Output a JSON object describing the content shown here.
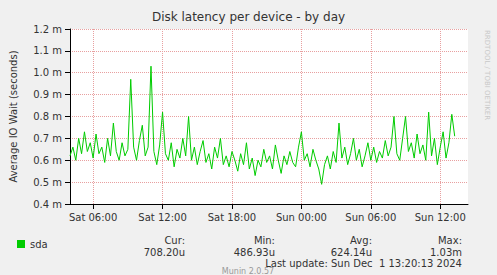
{
  "chart_data": {
    "type": "line",
    "title": "Disk latency per device - by day",
    "y_label": "Average IO Wait (seconds)",
    "side_text": "RRDTOOL / TOBI OETIKER",
    "x": [
      4,
      4.25,
      4.5,
      4.75,
      5,
      5.25,
      5.5,
      5.75,
      6,
      6.25,
      6.5,
      6.75,
      7,
      7.25,
      7.5,
      7.75,
      8,
      8.25,
      8.5,
      8.75,
      9,
      9.25,
      9.5,
      9.75,
      10,
      10.25,
      10.5,
      10.75,
      11,
      11.25,
      11.5,
      11.75,
      12,
      12.25,
      12.5,
      12.75,
      13,
      13.25,
      13.5,
      13.75,
      14,
      14.25,
      14.5,
      14.75,
      15,
      15.25,
      15.5,
      15.75,
      16,
      16.25,
      16.5,
      16.75,
      17,
      17.25,
      17.5,
      17.75,
      18,
      18.25,
      18.5,
      18.75,
      19,
      19.25,
      19.5,
      19.75,
      20,
      20.25,
      20.5,
      20.75,
      21,
      21.25,
      21.5,
      21.75,
      22,
      22.25,
      22.5,
      22.75,
      23,
      23.25,
      23.5,
      23.75,
      24,
      24.25,
      24.5,
      24.75,
      25,
      25.25,
      25.5,
      25.75,
      26,
      26.25,
      26.5,
      26.75,
      27,
      27.25,
      27.5,
      27.75,
      28,
      28.25,
      28.5,
      28.75,
      29,
      29.25,
      29.5,
      29.75,
      30,
      30.25,
      30.5,
      30.75,
      31,
      31.25,
      31.5,
      31.75,
      32,
      32.25,
      32.5,
      32.75,
      33,
      33.25,
      33.5,
      33.75,
      34,
      34.25,
      34.5,
      34.75,
      35,
      35.25,
      35.5,
      35.75,
      36,
      36.25,
      36.5,
      36.75,
      37,
      37.25
    ],
    "series": [
      {
        "name": "sda",
        "color": "#00cc00",
        "values": [
          0.00062,
          0.00066,
          0.0006,
          0.0007,
          0.00063,
          0.00073,
          0.00064,
          0.00068,
          0.00061,
          0.00072,
          0.00063,
          0.00066,
          0.00059,
          0.0007,
          0.00062,
          0.00077,
          0.00064,
          0.0006,
          0.00068,
          0.00062,
          0.00065,
          0.00097,
          0.00066,
          0.0006,
          0.00069,
          0.00076,
          0.00062,
          0.00066,
          0.00103,
          0.00064,
          0.00058,
          0.00067,
          0.00082,
          0.00063,
          0.0006,
          0.00068,
          0.00057,
          0.00065,
          0.00061,
          0.0007,
          0.00062,
          0.0008,
          0.0006,
          0.00066,
          0.00058,
          0.00064,
          0.00069,
          0.00059,
          0.00063,
          0.00056,
          0.00066,
          0.00061,
          0.0007,
          0.00058,
          0.00062,
          0.00057,
          0.00064,
          0.0006,
          0.00055,
          0.00063,
          0.00058,
          0.00068,
          0.00056,
          0.00061,
          0.00053,
          0.0006,
          0.00057,
          0.00065,
          0.00059,
          0.00062,
          0.00056,
          0.00067,
          0.0006,
          0.00054,
          0.00062,
          0.00058,
          0.00064,
          0.00059,
          0.00057,
          0.00066,
          0.00073,
          0.0006,
          0.00063,
          0.00057,
          0.00065,
          0.0006,
          0.00056,
          0.00049,
          0.00058,
          0.00062,
          0.00056,
          0.00064,
          0.00059,
          0.00077,
          0.00061,
          0.00066,
          0.00058,
          0.00063,
          0.0007,
          0.0006,
          0.00065,
          0.00057,
          0.00062,
          0.00068,
          0.0006,
          0.00066,
          0.00059,
          0.00064,
          0.00061,
          0.00069,
          0.00062,
          0.00066,
          0.0008,
          0.00063,
          0.0006,
          0.0007,
          0.0008,
          0.00064,
          0.00068,
          0.00061,
          0.00072,
          0.00063,
          0.00067,
          0.0006,
          0.00082,
          0.00062,
          0.0007,
          0.00058,
          0.00066,
          0.00073,
          0.00061,
          0.00068,
          0.00081,
          0.00071
        ]
      }
    ],
    "xlim": [
      4,
      38.4
    ],
    "xticks": [
      {
        "value": 6,
        "label": "Sat 06:00"
      },
      {
        "value": 12,
        "label": "Sat 12:00"
      },
      {
        "value": 18,
        "label": "Sat 18:00"
      },
      {
        "value": 24,
        "label": "Sun 00:00"
      },
      {
        "value": 30,
        "label": "Sun 06:00"
      },
      {
        "value": 36,
        "label": "Sun 12:00"
      }
    ],
    "ylim": [
      0.0004,
      0.0012
    ],
    "yticks": [
      {
        "value": 0.0004,
        "label": "0.4 m"
      },
      {
        "value": 0.0005,
        "label": "0.5 m"
      },
      {
        "value": 0.0006,
        "label": "0.6 m"
      },
      {
        "value": 0.0007,
        "label": "0.7 m"
      },
      {
        "value": 0.0008,
        "label": "0.8 m"
      },
      {
        "value": 0.0009,
        "label": "0.9 m"
      },
      {
        "value": 0.001,
        "label": "1.0 m"
      },
      {
        "value": 0.0011,
        "label": "1.1 m"
      },
      {
        "value": 0.0012,
        "label": "1.2 m"
      }
    ],
    "grid": true,
    "legend": "bottom-left",
    "stats": {
      "headers": [
        "Cur:",
        "Min:",
        "Avg:",
        "Max:"
      ],
      "values": [
        "708.20u",
        "486.93u",
        "624.14u",
        "1.03m"
      ]
    },
    "footer": "Last update: Sun Dec  1 13:20:13 2024",
    "credit": "Munin 2.0.57"
  }
}
